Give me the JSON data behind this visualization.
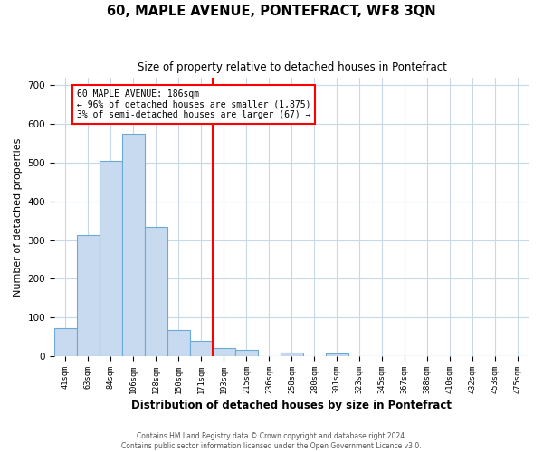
{
  "title": "60, MAPLE AVENUE, PONTEFRACT, WF8 3QN",
  "subtitle": "Size of property relative to detached houses in Pontefract",
  "xlabel": "Distribution of detached houses by size in Pontefract",
  "ylabel": "Number of detached properties",
  "bar_labels": [
    "41sqm",
    "63sqm",
    "84sqm",
    "106sqm",
    "128sqm",
    "150sqm",
    "171sqm",
    "193sqm",
    "215sqm",
    "236sqm",
    "258sqm",
    "280sqm",
    "301sqm",
    "323sqm",
    "345sqm",
    "367sqm",
    "388sqm",
    "410sqm",
    "432sqm",
    "453sqm",
    "475sqm"
  ],
  "bar_values": [
    72,
    312,
    505,
    575,
    333,
    68,
    40,
    20,
    15,
    0,
    10,
    0,
    6,
    0,
    0,
    0,
    0,
    0,
    0,
    0,
    0
  ],
  "bar_color": "#c8daf0",
  "bar_edge_color": "#6aaad4",
  "vline_index": 7,
  "vline_color": "red",
  "annotation_line1": "60 MAPLE AVENUE: 186sqm",
  "annotation_line2": "← 96% of detached houses are smaller (1,875)",
  "annotation_line3": "3% of semi-detached houses are larger (67) →",
  "ylim": [
    0,
    720
  ],
  "yticks": [
    0,
    100,
    200,
    300,
    400,
    500,
    600,
    700
  ],
  "footer_line1": "Contains HM Land Registry data © Crown copyright and database right 2024.",
  "footer_line2": "Contains public sector information licensed under the Open Government Licence v3.0.",
  "background_color": "#ffffff",
  "grid_color": "#c8d8e8"
}
